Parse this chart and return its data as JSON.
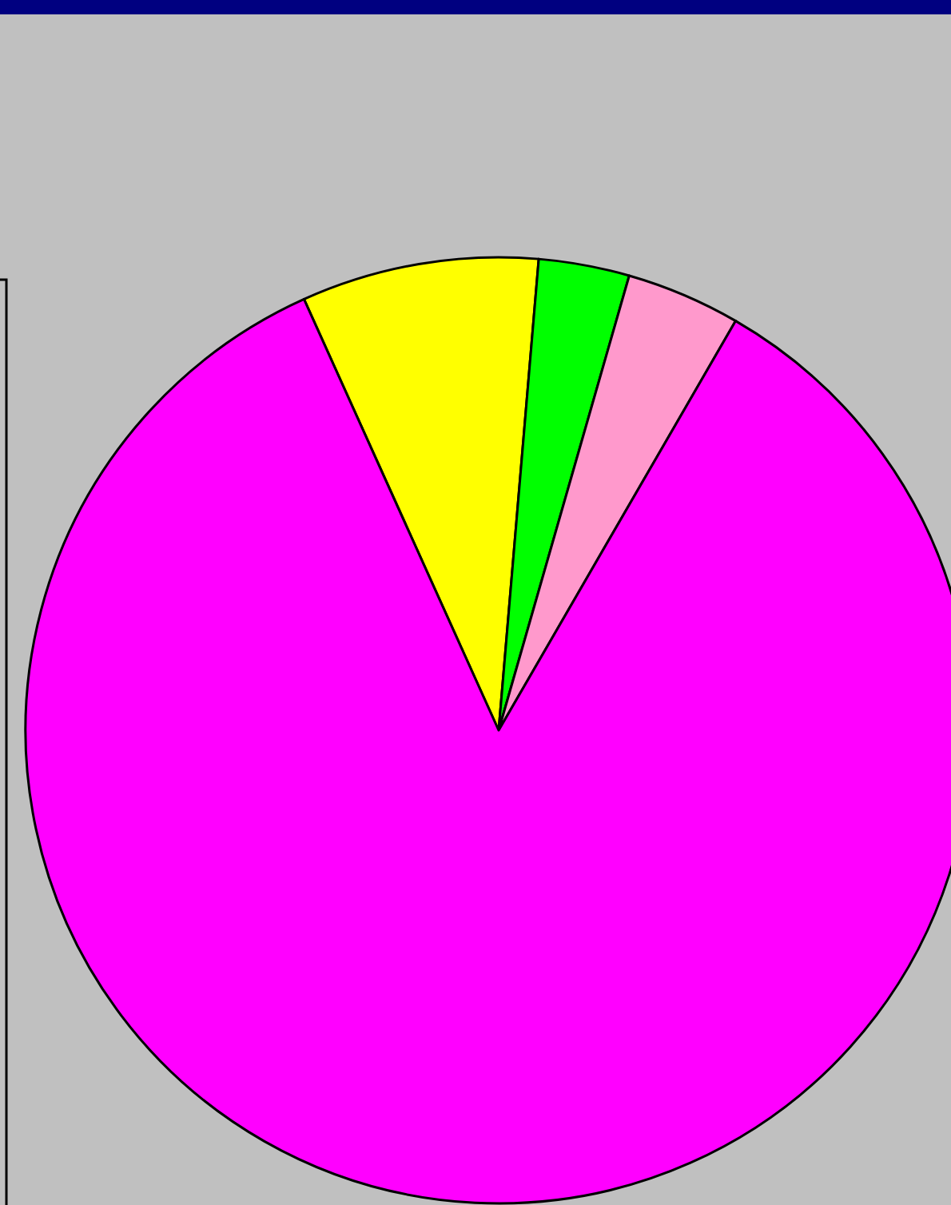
{
  "chart_data": {
    "type": "pie",
    "categories": [
      null,
      null,
      null,
      null
    ],
    "values": [
      8.1,
      3.1,
      3.9,
      84.9
    ],
    "colors": [
      "#ffff00",
      "#00ff00",
      "#ff99cc",
      "#ff00ff"
    ]
  }
}
